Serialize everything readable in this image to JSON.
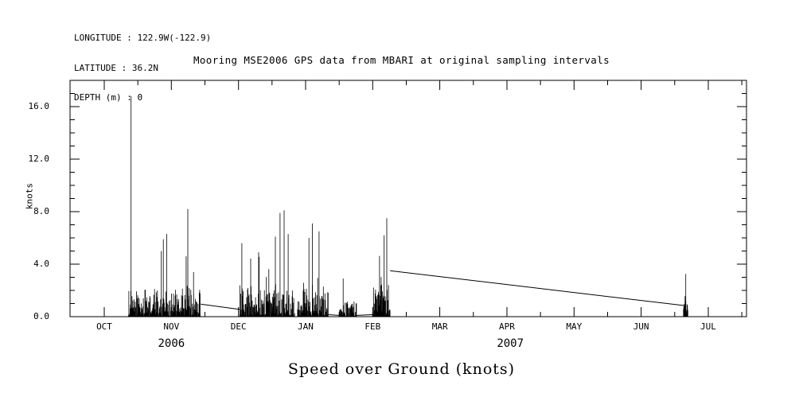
{
  "metadata": {
    "longitude": "LONGITUDE : 122.9W(-122.9)",
    "latitude": "LATITUDE : 36.2N",
    "depth": "DEPTH (m) : 0"
  },
  "chart_data": {
    "type": "line",
    "title": "Mooring MSE2006 GPS data from MBARI at original sampling intervals",
    "ylabel": "knots",
    "xlabel": "Speed over Ground (knots)",
    "ylim": [
      0,
      18
    ],
    "grid": false,
    "yticks": [
      {
        "value": 0,
        "label": "0.0"
      },
      {
        "value": 4,
        "label": "4.0"
      },
      {
        "value": 8,
        "label": "8.0"
      },
      {
        "value": 12,
        "label": "12.0"
      },
      {
        "value": 16,
        "label": "16.0"
      }
    ],
    "y_minor_step": 1,
    "x_tick_labels": [
      "OCT",
      "NOV",
      "DEC",
      "JAN",
      "FEB",
      "MAR",
      "APR",
      "MAY",
      "JUN",
      "JUL"
    ],
    "x_span_note": "Oct 2006 through Jul 2007, t measured in months after Oct 1 2006",
    "year_labels": [
      {
        "label": "2006",
        "month_index": 1.0
      },
      {
        "label": "2007",
        "month_index": 6.05
      }
    ],
    "max_spike": {
      "t_month": 0.4,
      "value_knots": 16.8
    },
    "noise_segments": [
      {
        "t0": 0.36,
        "t1": 1.44,
        "typ": 2.2,
        "floor": 0.05,
        "peaks": [
          [
            0.4,
            16.8
          ],
          [
            0.85,
            5.0
          ],
          [
            0.88,
            5.9
          ],
          [
            0.93,
            6.3
          ],
          [
            1.22,
            4.6
          ],
          [
            1.245,
            8.2
          ],
          [
            1.33,
            3.4
          ]
        ]
      },
      {
        "t0": 2.02,
        "t1": 2.84,
        "typ": 2.6,
        "floor": 0.05,
        "peaks": [
          [
            2.05,
            5.6
          ],
          [
            2.3,
            4.9
          ],
          [
            2.55,
            6.1
          ],
          [
            2.62,
            7.9
          ],
          [
            2.68,
            8.1
          ],
          [
            2.74,
            6.3
          ]
        ]
      },
      {
        "t0": 2.88,
        "t1": 3.34,
        "typ": 2.8,
        "floor": 0.05,
        "peaks": [
          [
            3.05,
            6.0
          ],
          [
            3.1,
            7.1
          ],
          [
            3.2,
            6.5
          ]
        ]
      },
      {
        "t0": 3.5,
        "t1": 3.76,
        "typ": 1.3,
        "floor": 0.03,
        "peaks": [
          [
            3.56,
            2.9
          ]
        ]
      },
      {
        "t0": 4.0,
        "t1": 4.26,
        "typ": 3.0,
        "floor": 0.1,
        "peaks": [
          [
            4.17,
            6.2
          ],
          [
            4.21,
            7.5
          ]
        ]
      },
      {
        "t0": 8.63,
        "t1": 8.7,
        "typ": 1.0,
        "floor": 0.2,
        "peaks": [
          [
            8.665,
            3.25
          ]
        ]
      }
    ],
    "connector_lines": [
      {
        "points": [
          [
            1.44,
            0.95
          ],
          [
            2.02,
            0.55
          ]
        ]
      },
      {
        "points": [
          [
            3.34,
            0.15
          ],
          [
            3.5,
            0.1
          ]
        ]
      },
      {
        "points": [
          [
            3.76,
            0.1
          ],
          [
            4.0,
            0.15
          ]
        ]
      },
      {
        "points": [
          [
            4.26,
            3.5
          ],
          [
            8.64,
            0.85
          ]
        ]
      }
    ],
    "line_color": "#000000"
  }
}
